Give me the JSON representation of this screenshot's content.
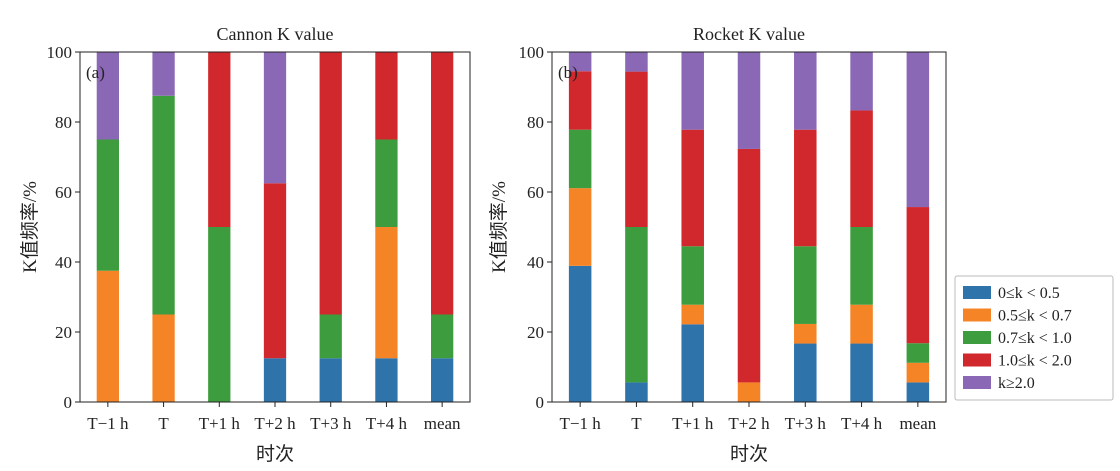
{
  "colors": {
    "0≤k<0.5": "#2f73ab",
    "0.5≤k<0.7": "#f58426",
    "0.7≤k<1.0": "#3d9c3d",
    "1.0≤k<2.0": "#d0282d",
    "k≥2.0": "#8b68b5"
  },
  "legend": [
    {
      "label": "0≤k < 0.5",
      "key": "0≤k<0.5"
    },
    {
      "label": "0.5≤k < 0.7",
      "key": "0.5≤k<0.7"
    },
    {
      "label": "0.7≤k < 1.0",
      "key": "0.7≤k<1.0"
    },
    {
      "label": "1.0≤k < 2.0",
      "key": "1.0≤k<2.0"
    },
    {
      "label": "k≥2.0",
      "key": "k≥2.0"
    }
  ],
  "chart_data": [
    {
      "type": "bar",
      "stacked": true,
      "title": "Cannon K value",
      "panel_label": "(a)",
      "xlabel": "时次",
      "ylabel": "K值频率/%",
      "ylim": [
        0,
        100
      ],
      "yticks": [
        0,
        20,
        40,
        60,
        80,
        100
      ],
      "categories": [
        "T−1 h",
        "T",
        "T+1 h",
        "T+2 h",
        "T+3 h",
        "T+4 h",
        "mean"
      ],
      "series": [
        {
          "name": "0≤k<0.5",
          "values": [
            0,
            0,
            0,
            12.5,
            12.5,
            12.5,
            12.5
          ]
        },
        {
          "name": "0.5≤k<0.7",
          "values": [
            37.5,
            25,
            0,
            0,
            0,
            37.5,
            0
          ]
        },
        {
          "name": "0.7≤k<1.0",
          "values": [
            37.5,
            62.5,
            50,
            0,
            12.5,
            25,
            12.5
          ]
        },
        {
          "name": "1.0≤k<2.0",
          "values": [
            0,
            0,
            50,
            50,
            75,
            25,
            75
          ]
        },
        {
          "name": "k≥2.0",
          "values": [
            25,
            12.5,
            0,
            37.5,
            0,
            0,
            0
          ]
        }
      ]
    },
    {
      "type": "bar",
      "stacked": true,
      "title": "Rocket K value",
      "panel_label": "(b)",
      "xlabel": "时次",
      "ylabel": "K值频率/%",
      "ylim": [
        0,
        100
      ],
      "yticks": [
        0,
        20,
        40,
        60,
        80,
        100
      ],
      "categories": [
        "T−1 h",
        "T",
        "T+1 h",
        "T+2 h",
        "T+3 h",
        "T+4 h",
        "mean"
      ],
      "series": [
        {
          "name": "0≤k<0.5",
          "values": [
            38.9,
            5.6,
            22.2,
            0,
            16.7,
            16.7,
            5.6
          ]
        },
        {
          "name": "0.5≤k<0.7",
          "values": [
            22.2,
            0,
            5.6,
            5.6,
            5.6,
            11.1,
            5.6
          ]
        },
        {
          "name": "0.7≤k<1.0",
          "values": [
            16.7,
            44.4,
            16.7,
            0,
            22.2,
            22.2,
            5.6
          ]
        },
        {
          "name": "1.0≤k<2.0",
          "values": [
            16.7,
            44.4,
            33.3,
            66.7,
            33.3,
            33.3,
            38.9
          ]
        },
        {
          "name": "k≥2.0",
          "values": [
            5.5,
            5.6,
            22.2,
            27.7,
            22.2,
            16.7,
            44.3
          ]
        }
      ]
    }
  ]
}
